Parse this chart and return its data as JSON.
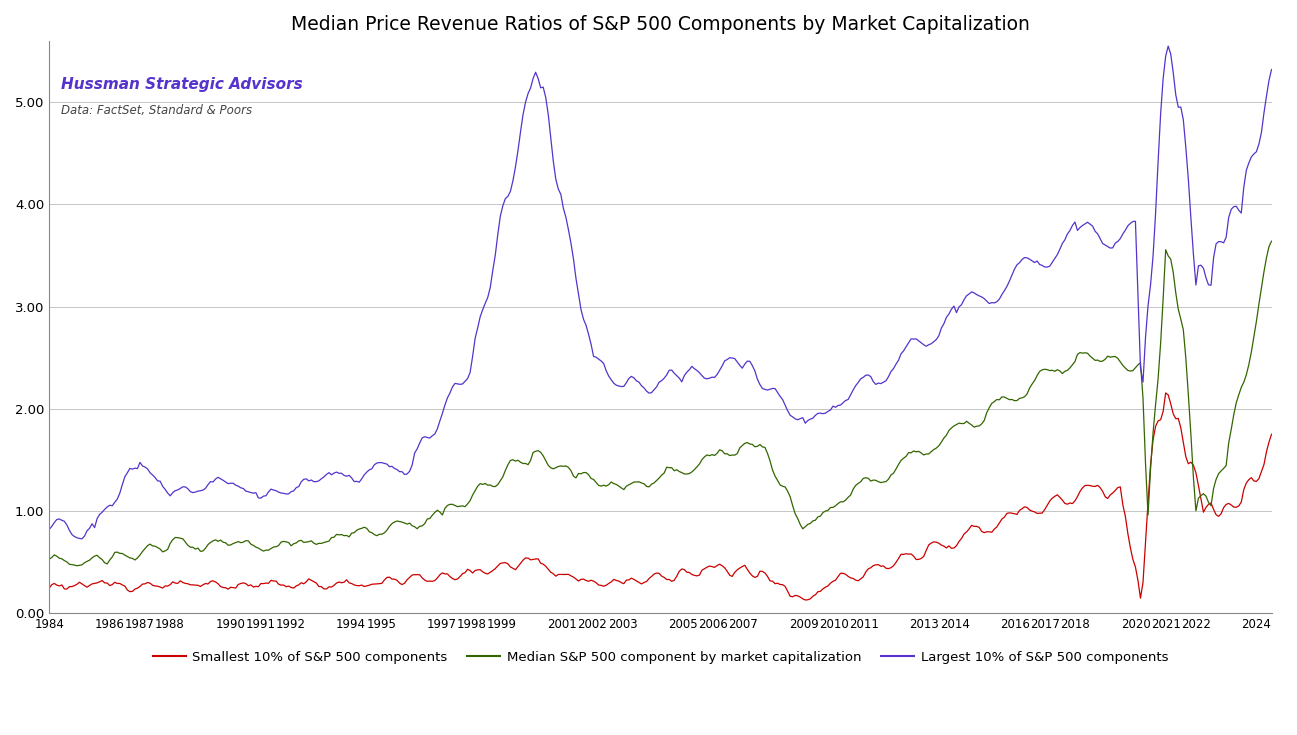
{
  "title": "Median Price Revenue Ratios of S&P 500 Components by Market Capitalization",
  "subtitle1": "Hussman Strategic Advisors",
  "subtitle2": "Data: FactSet, Standard & Poors",
  "legend_labels": [
    "Smallest 10% of S&P 500 components",
    "Median S&P 500 component by market capitalization",
    "Largest 10% of S&P 500 components"
  ],
  "line_colors": [
    "#cc0000",
    "#336600",
    "#5533cc"
  ],
  "background_color": "#ffffff",
  "ylim": [
    0.0,
    5.6
  ],
  "yticks": [
    0.0,
    1.0,
    2.0,
    3.0,
    4.0,
    5.0
  ],
  "xlim_start": 1984.0,
  "xlim_end": 2024.5,
  "xtick_years": [
    1984,
    1986,
    1987,
    1988,
    1990,
    1991,
    1992,
    1994,
    1995,
    1997,
    1998,
    1999,
    2001,
    2002,
    2003,
    2005,
    2006,
    2007,
    2009,
    2010,
    2011,
    2013,
    2014,
    2016,
    2017,
    2018,
    2020,
    2021,
    2022,
    2024
  ]
}
